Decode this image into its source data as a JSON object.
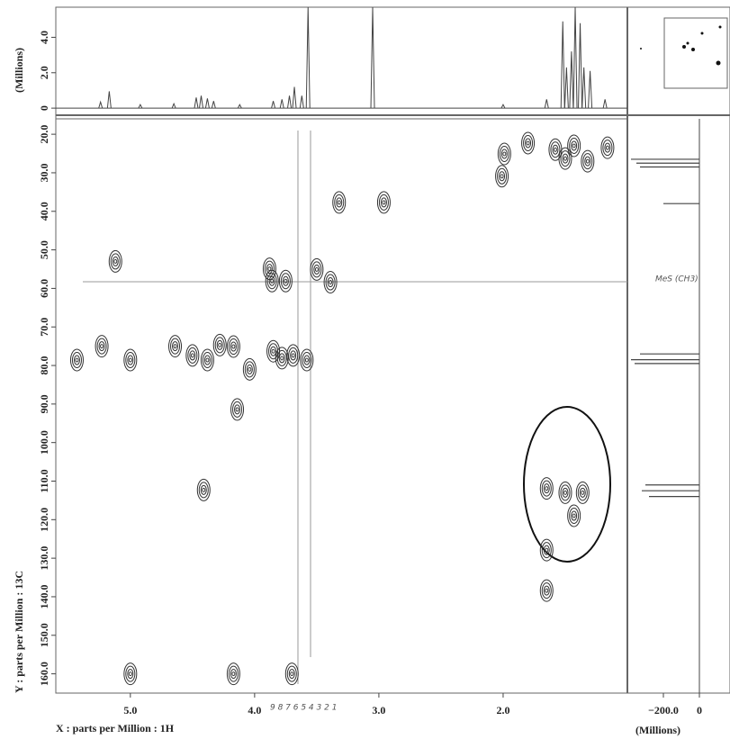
{
  "chart_data": [
    {
      "type": "scatter",
      "x_label": "X : parts per Million : 1H",
      "y_label": "Y : parts per Million : 13C",
      "annotations": [
        "MeS (CH3)",
        "9 8 7 6 5 4 3 2 1"
      ],
      "xlim": [
        5.6,
        1.0
      ],
      "ylim": [
        16,
        165
      ],
      "xticks": [
        {
          "value": 5,
          "label": "5.0"
        },
        {
          "value": 4,
          "label": "4.0"
        },
        {
          "value": 3,
          "label": "3.0"
        },
        {
          "value": 2,
          "label": "2.0"
        }
      ],
      "yticks": [
        {
          "value": 20,
          "label": "20.0"
        },
        {
          "value": 30,
          "label": "30.0"
        },
        {
          "value": 40,
          "label": "40.0"
        },
        {
          "value": 50,
          "label": "50.0"
        },
        {
          "value": 60,
          "label": "60.0"
        },
        {
          "value": 70,
          "label": "70.0"
        },
        {
          "value": 80,
          "label": "80.0"
        },
        {
          "value": 90,
          "label": "90.0"
        },
        {
          "value": 100,
          "label": "100.0"
        },
        {
          "value": 110,
          "label": "110.0"
        },
        {
          "value": 120,
          "label": "120.0"
        },
        {
          "value": 130,
          "label": "130.0"
        },
        {
          "value": 140,
          "label": "140.0"
        },
        {
          "value": 150,
          "label": "150.0"
        },
        {
          "value": 160,
          "label": "160.0"
        }
      ],
      "color": "#333333",
      "x": [
        3.32,
        2.96,
        3.86,
        3.75,
        3.88,
        3.5,
        3.39,
        3.58,
        4.41,
        3.7,
        1.65,
        1.5,
        1.36,
        1.43,
        1.65,
        1.65,
        1.99,
        1.8,
        2.01,
        1.58,
        1.43,
        1.32,
        1.16,
        1.5,
        4.64,
        4.5,
        4.38,
        4.28,
        4.17,
        4.04,
        3.85,
        3.78,
        3.69,
        5.23,
        5.43,
        5.0,
        4.14,
        5.12,
        4.17,
        5.0
      ],
      "y": [
        37.7,
        37.7,
        58.1,
        58.1,
        54.9,
        55.1,
        58.4,
        78.6,
        112.3,
        160,
        111.9,
        113,
        113,
        119,
        127.9,
        138.4,
        25.1,
        22.3,
        30.9,
        24,
        23,
        27,
        23.5,
        26.3,
        75,
        77.4,
        78.6,
        74.7,
        75.1,
        81,
        76.3,
        78.1,
        77.4,
        75,
        78.6,
        78.6,
        91.4,
        53,
        160,
        160
      ]
    },
    {
      "type": "spectrum",
      "y_label": "(Millions)",
      "xlim": [
        5.6,
        1.0
      ],
      "ylim": [
        -0.4,
        5.7
      ],
      "yticks": [
        0,
        {
          "value": 2,
          "label": "2.0"
        },
        {
          "value": 4,
          "label": "4.0"
        }
      ],
      "color": "#444444",
      "x": [
        5.24,
        5.17,
        4.92,
        4.65,
        4.47,
        4.43,
        4.38,
        4.33,
        4.12,
        3.85,
        3.78,
        3.72,
        3.68,
        3.62,
        3.57,
        3.05,
        2.0,
        1.65,
        1.52,
        1.49,
        1.45,
        1.42,
        1.38,
        1.35,
        1.3,
        1.18
      ],
      "values": [
        0.35,
        0.95,
        0.2,
        0.25,
        0.6,
        0.7,
        0.55,
        0.4,
        0.2,
        0.4,
        0.5,
        0.7,
        1.2,
        0.7,
        5.7,
        5.7,
        0.2,
        0.5,
        4.9,
        2.3,
        3.2,
        5.7,
        4.8,
        2.3,
        2.1,
        0.5
      ]
    },
    {
      "type": "profile",
      "x_label": "(Millions)",
      "xlim": [
        -400,
        170
      ],
      "ylim": [
        16,
        165
      ],
      "xticks": [
        {
          "value": -200,
          "label": "−200.0"
        },
        0
      ],
      "color": "#444444",
      "y": [
        26.5,
        27.5,
        28.5,
        38,
        77,
        78.5,
        79.5,
        111,
        112.5,
        114
      ],
      "values": [
        -380,
        -350,
        -330,
        -200,
        -330,
        -380,
        -360,
        -300,
        -320,
        -280
      ]
    }
  ]
}
